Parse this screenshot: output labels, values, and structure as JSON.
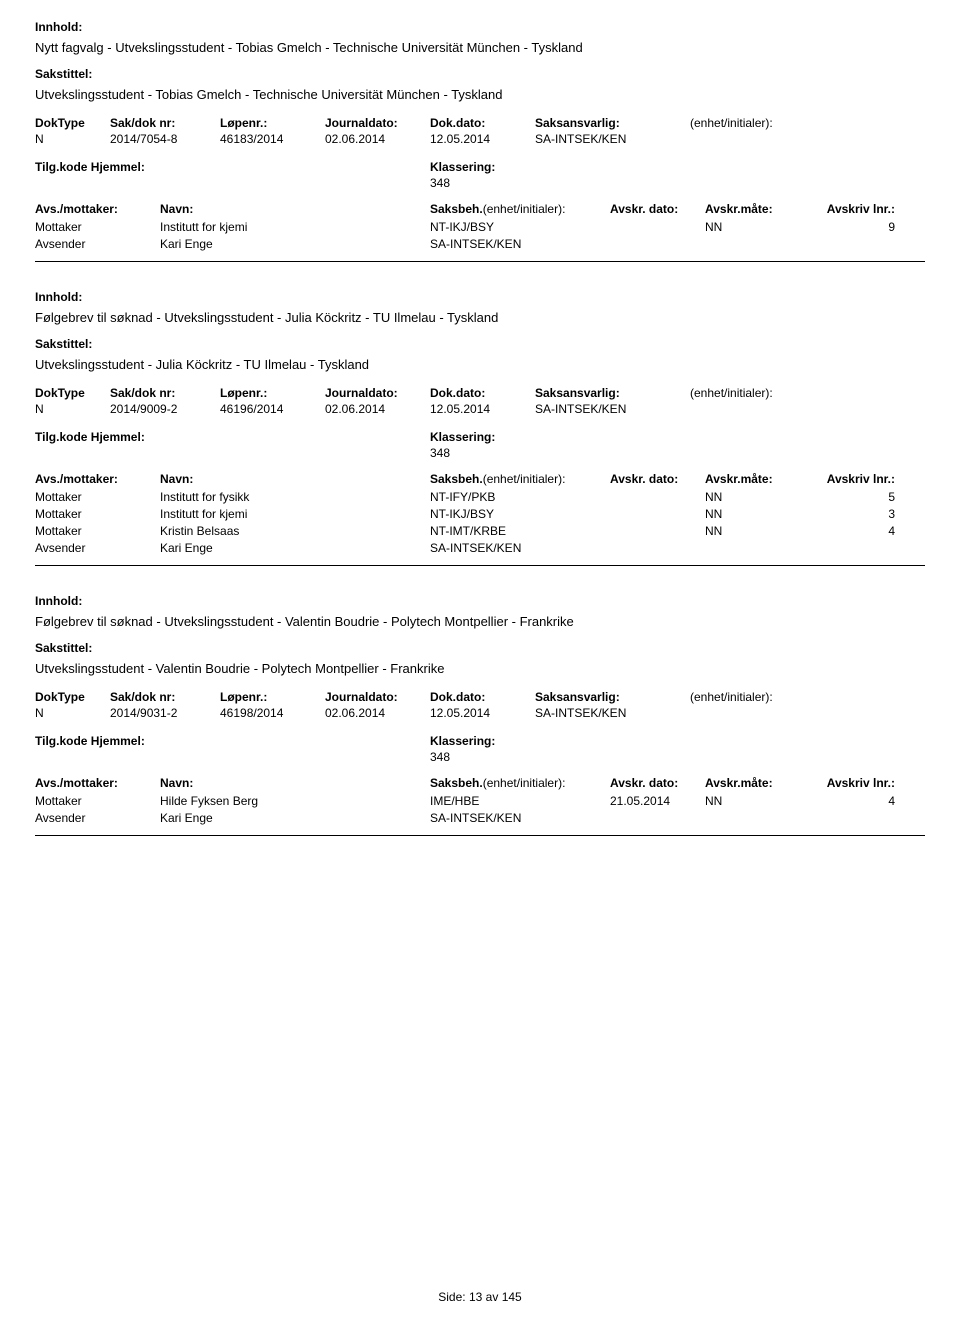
{
  "labels": {
    "innhold": "Innhold:",
    "sakstittel": "Sakstittel:",
    "doktype": "DokType",
    "sakdoknr": "Sak/dok nr:",
    "lopenr": "Løpenr.:",
    "journaldato": "Journaldato:",
    "dokdato": "Dok.dato:",
    "saksansvarlig": "Saksansvarlig:",
    "enhet": "(enhet/initialer):",
    "tilgkode": "Tilg.kode",
    "hjemmel": "Hjemmel:",
    "klassering": "Klassering:",
    "avsmottaker": "Avs./mottaker:",
    "navn": "Navn:",
    "saksbeh": "Saksbeh.",
    "saksbeh_enhet": "(enhet/initialer):",
    "avskrdato": "Avskr. dato:",
    "avskrmate": "Avskr.måte:",
    "avskrivlnr": "Avskriv lnr.:"
  },
  "records": [
    {
      "innhold": "Nytt fagvalg - Utvekslingsstudent - Tobias Gmelch - Technische Universität München - Tyskland",
      "sakstittel": "Utvekslingsstudent - Tobias Gmelch - Technische Universität München - Tyskland",
      "doktype": "N",
      "sakdoknr": "2014/7054-8",
      "lopenr": "46183/2014",
      "journaldato": "02.06.2014",
      "dokdato": "12.05.2014",
      "saksansvarlig": "SA-INTSEK/KEN",
      "klassering": "348",
      "parties": [
        {
          "role": "Mottaker",
          "navn": "Institutt for kjemi",
          "saksbeh": "NT-IKJ/BSY",
          "avskrdato": "",
          "avskrmate": "NN",
          "avskrlnr": "9"
        },
        {
          "role": "Avsender",
          "navn": "Kari Enge",
          "saksbeh": "SA-INTSEK/KEN",
          "avskrdato": "",
          "avskrmate": "",
          "avskrlnr": ""
        }
      ]
    },
    {
      "innhold": "Følgebrev til søknad - Utvekslingsstudent - Julia Köckritz - TU Ilmelau - Tyskland",
      "sakstittel": "Utvekslingsstudent - Julia Köckritz - TU Ilmelau - Tyskland",
      "doktype": "N",
      "sakdoknr": "2014/9009-2",
      "lopenr": "46196/2014",
      "journaldato": "02.06.2014",
      "dokdato": "12.05.2014",
      "saksansvarlig": "SA-INTSEK/KEN",
      "klassering": "348",
      "parties": [
        {
          "role": "Mottaker",
          "navn": "Institutt for fysikk",
          "saksbeh": "NT-IFY/PKB",
          "avskrdato": "",
          "avskrmate": "NN",
          "avskrlnr": "5"
        },
        {
          "role": "Mottaker",
          "navn": "Institutt for kjemi",
          "saksbeh": "NT-IKJ/BSY",
          "avskrdato": "",
          "avskrmate": "NN",
          "avskrlnr": "3"
        },
        {
          "role": "Mottaker",
          "navn": "Kristin Belsaas",
          "saksbeh": "NT-IMT/KRBE",
          "avskrdato": "",
          "avskrmate": "NN",
          "avskrlnr": "4"
        },
        {
          "role": "Avsender",
          "navn": "Kari Enge",
          "saksbeh": "SA-INTSEK/KEN",
          "avskrdato": "",
          "avskrmate": "",
          "avskrlnr": ""
        }
      ]
    },
    {
      "innhold": "Følgebrev til søknad - Utvekslingsstudent - Valentin Boudrie - Polytech Montpellier - Frankrike",
      "sakstittel": "Utvekslingsstudent - Valentin Boudrie - Polytech Montpellier - Frankrike",
      "doktype": "N",
      "sakdoknr": "2014/9031-2",
      "lopenr": "46198/2014",
      "journaldato": "02.06.2014",
      "dokdato": "12.05.2014",
      "saksansvarlig": "SA-INTSEK/KEN",
      "klassering": "348",
      "parties": [
        {
          "role": "Mottaker",
          "navn": "Hilde Fyksen Berg",
          "saksbeh": "IME/HBE",
          "avskrdato": "21.05.2014",
          "avskrmate": "NN",
          "avskrlnr": "4"
        },
        {
          "role": "Avsender",
          "navn": "Kari Enge",
          "saksbeh": "SA-INTSEK/KEN",
          "avskrdato": "",
          "avskrmate": "",
          "avskrlnr": ""
        }
      ]
    }
  ],
  "footer": {
    "side_label": "Side:",
    "page": "13",
    "av": "av",
    "total": "145"
  }
}
